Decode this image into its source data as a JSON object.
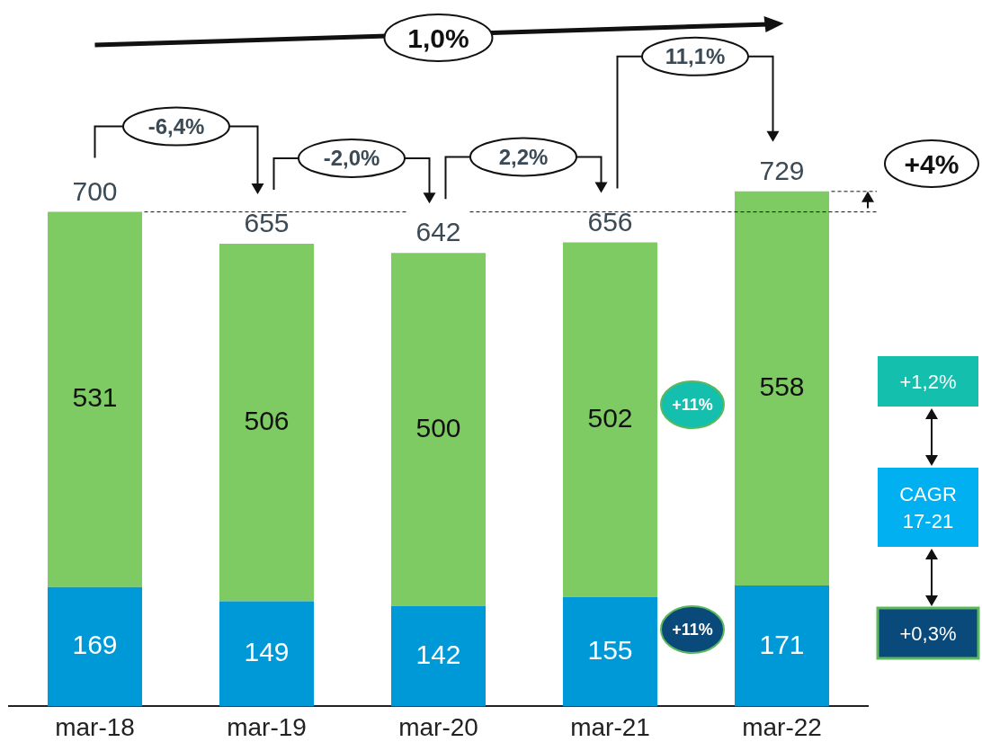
{
  "chart_data": {
    "type": "bar",
    "stacked": true,
    "data_labels": true,
    "grid": false,
    "legend": false,
    "categories": [
      "mar-18",
      "mar-19",
      "mar-20",
      "mar-21",
      "mar-22"
    ],
    "series": [
      {
        "color": "#0099d8",
        "values": [
          169,
          149,
          142,
          155,
          171
        ]
      },
      {
        "color": "#7ecb63",
        "values": [
          531,
          506,
          500,
          502,
          558
        ]
      }
    ],
    "totals": [
      "700",
      "655",
      "642",
      "656",
      "729"
    ],
    "annotations": [
      "1,0%",
      "-6,4%",
      "-2,0%",
      "2,2%",
      "11,1%",
      "+4%",
      "+11%",
      "+11%",
      "+1,2%",
      "CAGR 17-21",
      "+0,3%"
    ]
  }
}
